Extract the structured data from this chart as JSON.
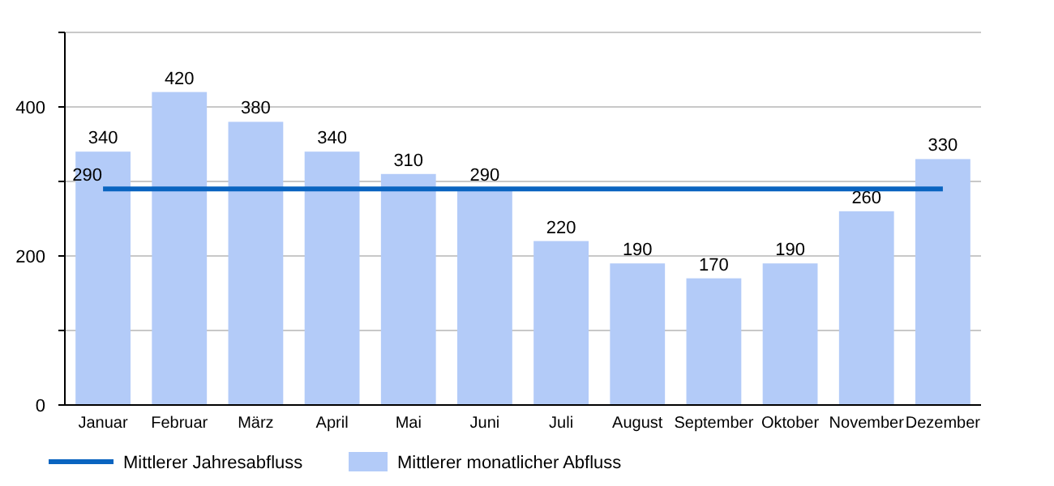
{
  "chart_data": {
    "type": "bar",
    "categories": [
      "Januar",
      "Februar",
      "März",
      "April",
      "Mai",
      "Juni",
      "Juli",
      "August",
      "September",
      "Oktober",
      "November",
      "Dezember"
    ],
    "series": [
      {
        "name": "Mittlerer monatlicher Abfluss",
        "color": "#b3cbf8",
        "values": [
          340,
          420,
          380,
          340,
          310,
          290,
          220,
          190,
          170,
          190,
          260,
          330
        ],
        "data_labels": true
      },
      {
        "type": "line",
        "name": "Mittlerer Jahresabfluss",
        "color": "#0a64c0",
        "values": [
          290,
          290,
          290,
          290,
          290,
          290,
          290,
          290,
          290,
          290,
          290,
          290
        ],
        "value_labels": [
          "290",
          null,
          null,
          null,
          null,
          null,
          null,
          null,
          null,
          null,
          null,
          null
        ]
      }
    ],
    "ylim": [
      0,
      500
    ],
    "yticks": [
      0,
      {
        "value": 100,
        "label": null
      },
      200,
      {
        "value": 300,
        "label": null
      },
      400,
      {
        "value": 500,
        "label": null
      }
    ],
    "grid": "y",
    "legend": "bottom"
  }
}
